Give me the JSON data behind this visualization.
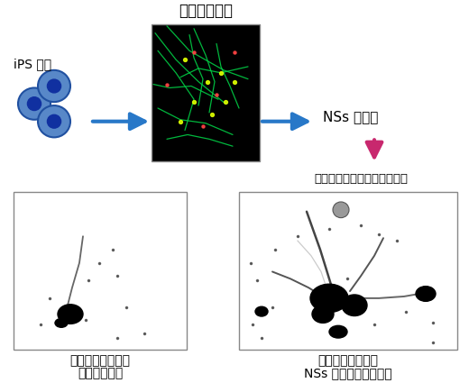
{
  "background_color": "#ffffff",
  "title_neuron": "運動神経細胞",
  "label_ips": "iPS 細胞",
  "label_nss": "NSs を発現",
  "label_stress_observe": "ストレス誘導時の変化を観察",
  "label_bottom_left_line1": "ストレスを与えた",
  "label_bottom_left_line2": "運動神経細胞",
  "label_bottom_right_line1": "ストレスを与えた",
  "label_bottom_right_line2": "NSs 発現運動神経細胞",
  "arrow_blue_color": "#2878c8",
  "arrow_pink_color": "#c8286e",
  "cell_color": "#5888c8",
  "cell_edge_color": "#2050a0",
  "cell_inner_color": "#1030a0"
}
